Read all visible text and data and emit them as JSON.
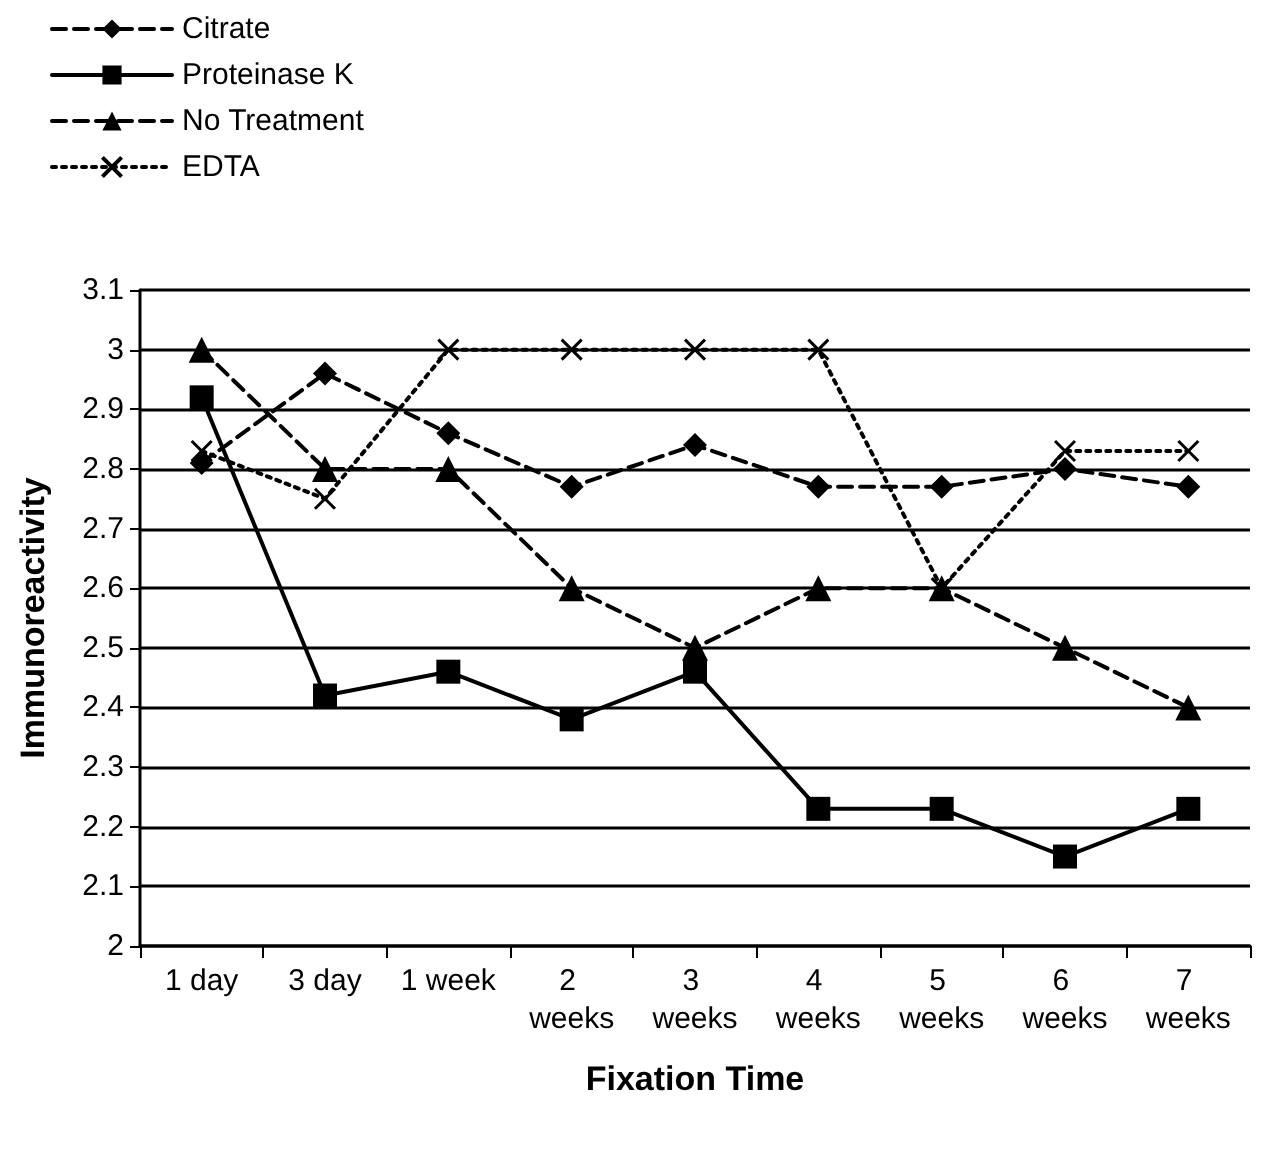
{
  "chart_data": {
    "type": "line",
    "xlabel": "Fixation Time",
    "ylabel": "Immunoreactivity",
    "categories": [
      "1 day",
      "3 day",
      "1 week",
      "2 weeks",
      "3 weeks",
      "4 weeks",
      "5 weeks",
      "6 weeks",
      "7 weeks"
    ],
    "series": [
      {
        "name": "Citrate",
        "color": "#000000",
        "marker": "diamond",
        "line_style": "dashed",
        "values": [
          2.81,
          2.96,
          2.86,
          2.77,
          2.84,
          2.77,
          2.77,
          2.8,
          2.77
        ]
      },
      {
        "name": "Proteinase K",
        "color": "#000000",
        "marker": "square",
        "line_style": "solid",
        "values": [
          2.92,
          2.42,
          2.46,
          2.38,
          2.46,
          2.23,
          2.23,
          2.15,
          2.23
        ]
      },
      {
        "name": "No Treatment",
        "color": "#000000",
        "marker": "triangle",
        "line_style": "dashed",
        "values": [
          3.0,
          2.8,
          2.8,
          2.6,
          2.5,
          2.6,
          2.6,
          2.5,
          2.4
        ]
      },
      {
        "name": "EDTA",
        "color": "#000000",
        "marker": "cross",
        "line_style": "dotted",
        "values": [
          2.83,
          2.75,
          3.0,
          3.0,
          3.0,
          3.0,
          2.6,
          2.83,
          2.83
        ]
      }
    ],
    "ylim": [
      2,
      3.1
    ],
    "yticks": [
      2,
      2.1,
      2.2,
      2.3,
      2.4,
      2.5,
      2.6,
      2.7,
      2.8,
      2.9,
      3,
      3.1
    ],
    "grid": "y",
    "legend": "top left"
  }
}
